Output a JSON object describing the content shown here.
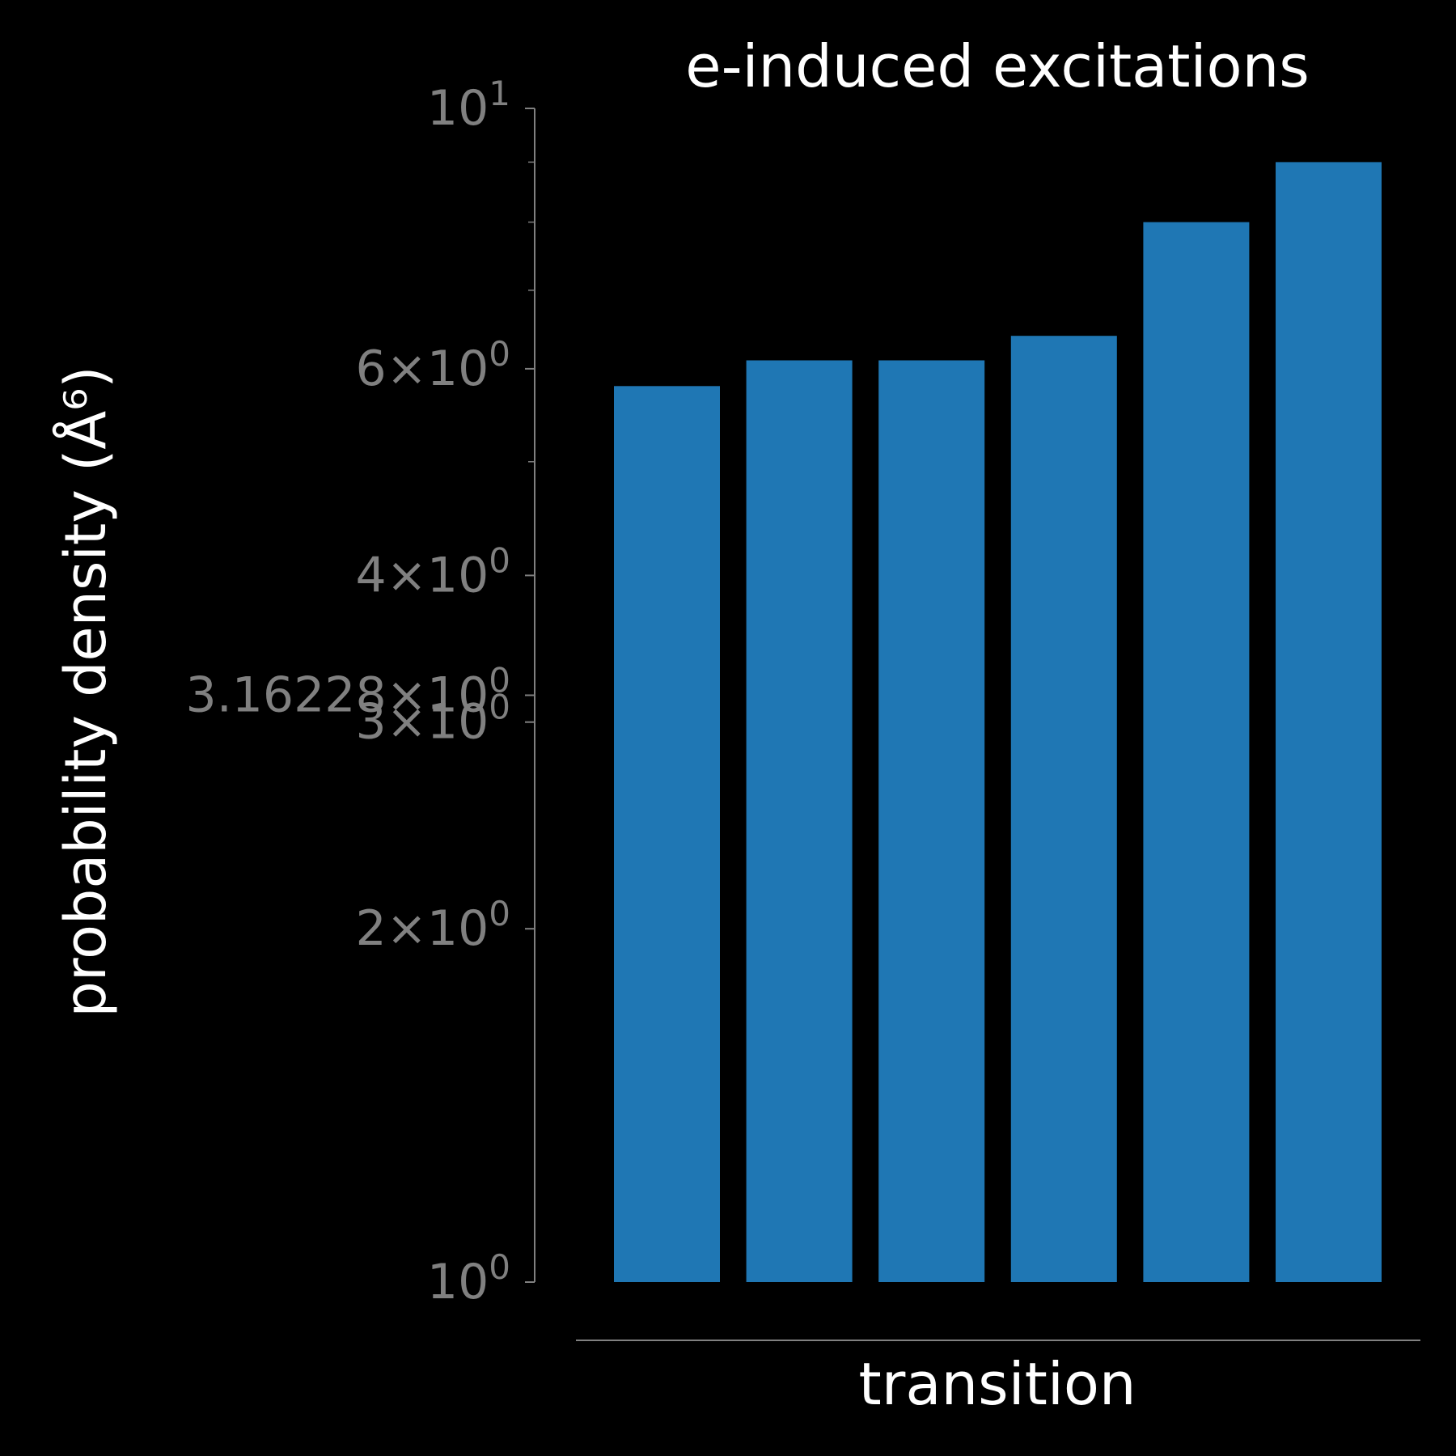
{
  "chart_data": {
    "type": "bar",
    "title": "e-induced excitations",
    "xlabel": "transition",
    "ylabel": "probability density (Å⁶)",
    "y_scale": "log",
    "ylim": [
      1,
      10
    ],
    "categories": [
      "",
      "",
      "",
      "",
      "",
      ""
    ],
    "values": [
      5.8,
      6.1,
      6.1,
      6.4,
      8.0,
      9.0
    ],
    "bar_color": "#1f77b4",
    "y_ticks": [
      {
        "value": 10,
        "base": "10",
        "exp": "1",
        "prefix": ""
      },
      {
        "value": 6,
        "base": "10",
        "exp": "0",
        "prefix": "6×"
      },
      {
        "value": 4,
        "base": "10",
        "exp": "0",
        "prefix": "4×"
      },
      {
        "value": 3.16228,
        "base": "10",
        "exp": "0",
        "prefix": "3.16228×"
      },
      {
        "value": 3,
        "base": "10",
        "exp": "0",
        "prefix": "3×"
      },
      {
        "value": 2,
        "base": "10",
        "exp": "0",
        "prefix": "2×"
      },
      {
        "value": 1,
        "base": "10",
        "exp": "0",
        "prefix": ""
      }
    ],
    "minor_ticks": [
      5,
      7,
      8,
      9
    ],
    "grid": false,
    "legend": "none",
    "background": "#000000",
    "axis_color": "#808080",
    "text_color": "#ffffff"
  }
}
